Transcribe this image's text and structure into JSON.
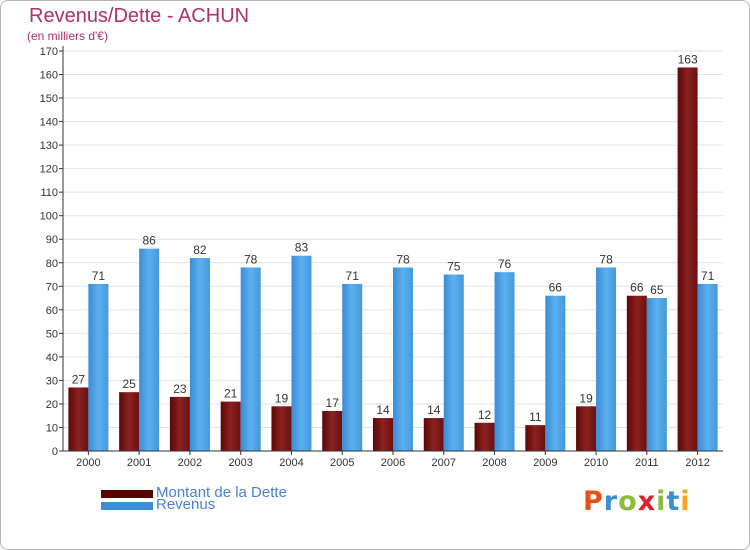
{
  "header": {
    "title": "Revenus/Dette - ACHUN",
    "subtitle": "(en milliers d'€)"
  },
  "legend": {
    "debt_label": "Montant de la Dette",
    "revenue_label": "Revenus"
  },
  "logo": {
    "text": "Proxiti",
    "letter_colors": [
      "#e94e1b",
      "#3b8fd0",
      "#8bbd3c",
      "#d9242b",
      "#8bbd3c",
      "#3b8fd0",
      "#f5a623"
    ]
  },
  "colors": {
    "debt": "#7a1818",
    "revenue": "#4a9fe0",
    "debt_legend": "#5a0000",
    "revenue_legend": "#3a8fdd"
  },
  "chart_data": {
    "type": "bar",
    "categories": [
      "2000",
      "2001",
      "2002",
      "2003",
      "2004",
      "2005",
      "2006",
      "2007",
      "2008",
      "2009",
      "2010",
      "2011",
      "2012"
    ],
    "series": [
      {
        "name": "Montant de la Dette",
        "values": [
          27,
          25,
          23,
          21,
          19,
          17,
          14,
          14,
          12,
          11,
          19,
          66,
          163
        ]
      },
      {
        "name": "Revenus",
        "values": [
          71,
          86,
          82,
          78,
          83,
          71,
          78,
          75,
          76,
          66,
          78,
          65,
          71
        ]
      }
    ],
    "title": "Revenus/Dette - ACHUN",
    "ylabel": "(en milliers d'€)",
    "ylim": [
      0,
      170
    ],
    "yticks": [
      0,
      10,
      20,
      30,
      40,
      50,
      60,
      70,
      80,
      90,
      100,
      110,
      120,
      130,
      140,
      150,
      160,
      170
    ],
    "grid": true,
    "legend": "bottom-left"
  }
}
